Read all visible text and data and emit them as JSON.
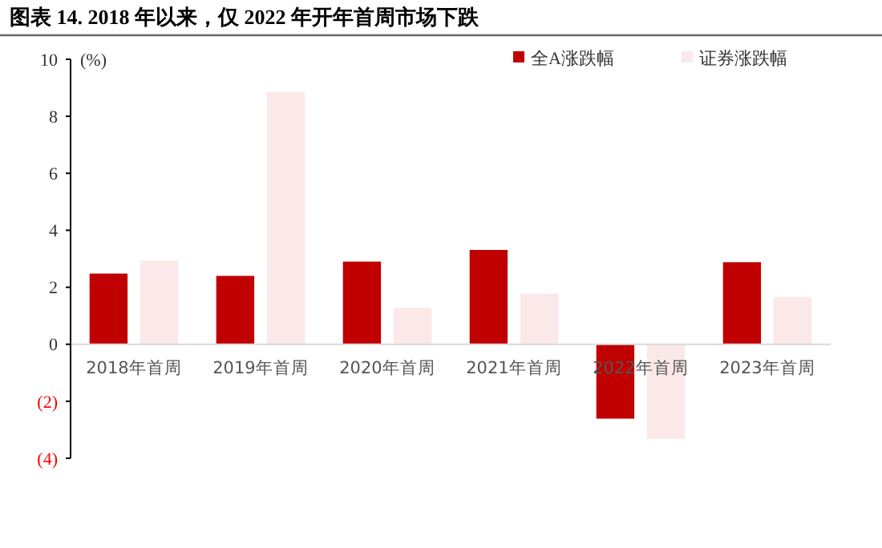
{
  "chart_data": {
    "type": "bar",
    "title": "图表 14. 2018 年以来，仅 2022 年开年首周市场下跌",
    "ylabel": "(%)",
    "categories": [
      "2018年首周",
      "2019年首周",
      "2020年首周",
      "2021年首周",
      "2022年首周",
      "2023年首周"
    ],
    "series": [
      {
        "name": "全A涨跌幅",
        "color": "#c00000",
        "values": [
          2.48,
          2.4,
          2.9,
          3.31,
          -2.61,
          2.88
        ]
      },
      {
        "name": "证券涨跌幅",
        "color": "#fae9e8",
        "values": [
          2.93,
          8.84,
          1.28,
          1.78,
          -3.32,
          1.66
        ]
      }
    ],
    "ylim": [
      -4,
      10
    ],
    "yticks": [
      {
        "value": -4,
        "label": "(4)"
      },
      {
        "value": -2,
        "label": "(2)"
      },
      0,
      2,
      4,
      6,
      8,
      10
    ],
    "grid": false,
    "legend": "top right"
  }
}
